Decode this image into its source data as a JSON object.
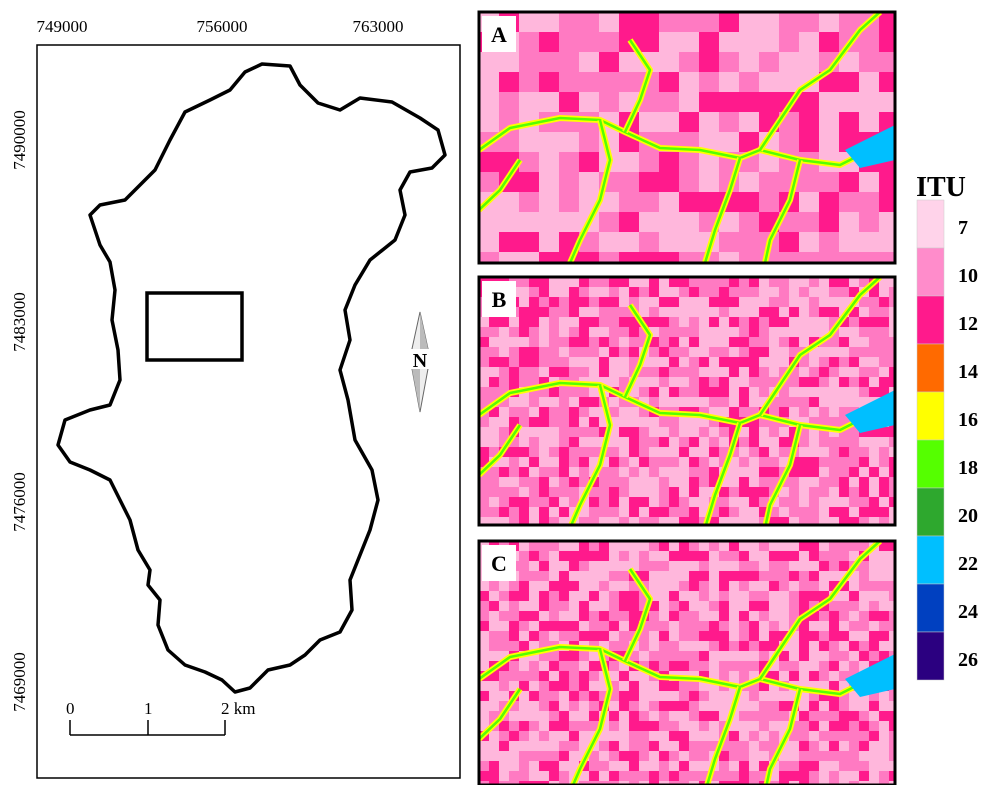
{
  "map": {
    "x_labels": [
      "749000",
      "756000",
      "763000"
    ],
    "y_labels": [
      "7490000",
      "7483000",
      "7476000",
      "7469000"
    ],
    "scale_labels": [
      "0",
      "1",
      "2 km"
    ],
    "north": "N",
    "panels": [
      "A",
      "B",
      "C"
    ],
    "legend": {
      "title": "ITU",
      "items": [
        {
          "label": "7",
          "color": "#ffd3ea"
        },
        {
          "label": "10",
          "color": "#ff8ccb"
        },
        {
          "label": "12",
          "color": "#ff1a8c"
        },
        {
          "label": "14",
          "color": "#ff6a00"
        },
        {
          "label": "16",
          "color": "#ffff00"
        },
        {
          "label": "18",
          "color": "#55ff00"
        },
        {
          "label": "20",
          "color": "#2ea82e"
        },
        {
          "label": "22",
          "color": "#00bfff"
        },
        {
          "label": "24",
          "color": "#0040c0"
        },
        {
          "label": "26",
          "color": "#2b0080"
        }
      ]
    }
  }
}
